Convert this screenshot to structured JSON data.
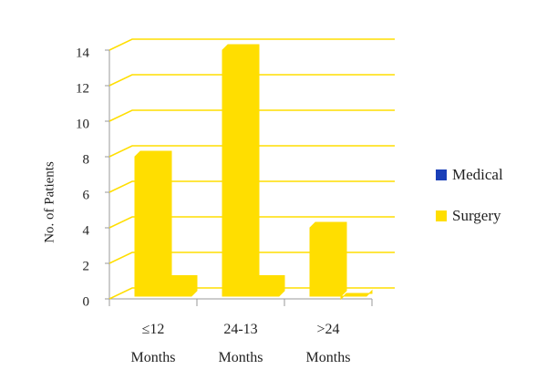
{
  "chart_data": {
    "type": "bar3d",
    "y_label": "No. of Patients",
    "categories": [
      "≤12\nMonths",
      "24-13\nMonths",
      ">24\nMonths"
    ],
    "series": [
      {
        "name": "Medical",
        "color": "#ffde00",
        "legend_color": "#1a3fb8",
        "values": [
          8,
          14,
          4
        ]
      },
      {
        "name": "Surgery",
        "color": "#ffde00",
        "legend_color": "#ffde00",
        "values": [
          1,
          1,
          0
        ]
      }
    ],
    "ylim": [
      0,
      14
    ],
    "yticks": [
      0,
      2,
      4,
      6,
      8,
      10,
      12,
      14
    ],
    "grid": true,
    "grid_color": "#ffde00"
  }
}
